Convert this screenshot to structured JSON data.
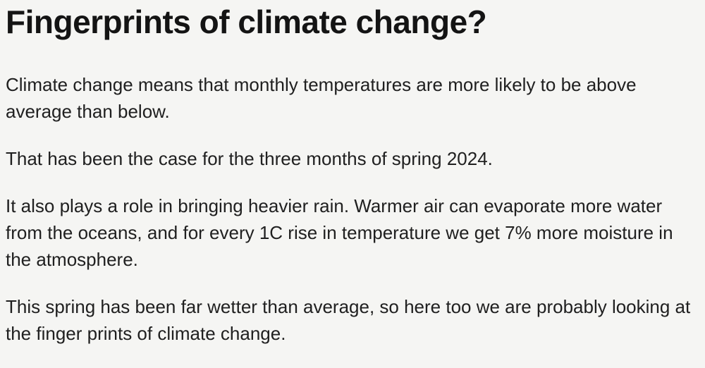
{
  "article": {
    "headline": "Fingerprints of climate change?",
    "paragraphs": [
      "Climate change means that monthly temperatures are more likely to be above average than below.",
      "That has been the case for the three months of spring 2024.",
      "It also plays a role in bringing heavier rain. Warmer air can evaporate more water from the oceans, and for every 1C rise in temperature we get 7% more moisture in the atmosphere.",
      "This spring has been far wetter than average, so here too we are probably looking at the finger prints of climate change."
    ]
  },
  "colors": {
    "background": "#f5f5f3",
    "headline_text": "#141414",
    "body_text": "#202020"
  }
}
